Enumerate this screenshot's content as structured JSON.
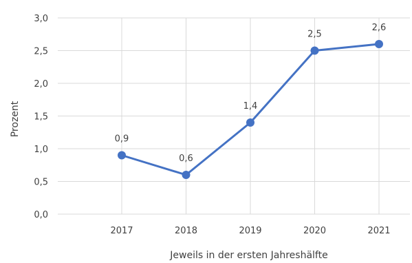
{
  "chart_data": {
    "type": "line",
    "title": "",
    "xlabel": "Jeweils in der ersten Jahreshälfte",
    "ylabel": "Prozent",
    "categories": [
      "2017",
      "2018",
      "2019",
      "2020",
      "2021"
    ],
    "series": [
      {
        "values": [
          0.9,
          0.6,
          1.4,
          2.5,
          2.6
        ],
        "labels": [
          "0,9",
          "0,6",
          "1,4",
          "2,5",
          "2,6"
        ],
        "color": "#4472c4"
      }
    ],
    "ylim": [
      0,
      3
    ],
    "yticks": [
      0,
      0.5,
      1,
      1.5,
      2,
      2.5,
      3
    ],
    "ytick_labels": [
      "0,0",
      "0,5",
      "1,0",
      "1,5",
      "2,0",
      "2,5",
      "3,0"
    ],
    "grid": true,
    "grid_color": "#d9d9d9",
    "legend": "none"
  }
}
